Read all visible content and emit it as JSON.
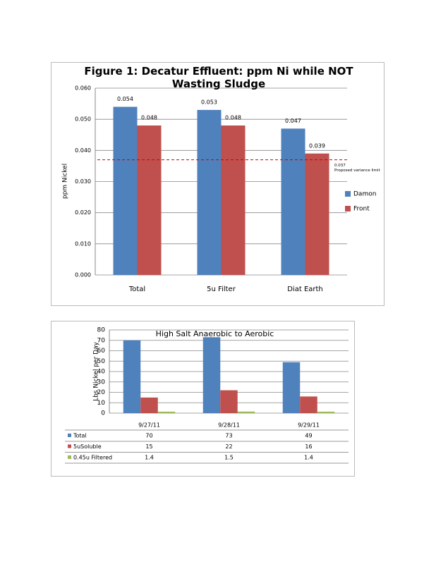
{
  "chart_data": [
    {
      "type": "bar",
      "title": "Figure 1: Decatur Effluent: ppm Ni while NOT Wasting Sludge",
      "y_label": "ppm Nickel",
      "categories": [
        "Total",
        "5u Filter",
        "Diat Earth"
      ],
      "series": [
        {
          "name": "Damon",
          "color": "#4f81bd",
          "values": [
            0.054,
            0.053,
            0.047
          ]
        },
        {
          "name": "Front",
          "color": "#c0504d",
          "values": [
            0.048,
            0.048,
            0.039
          ]
        }
      ],
      "ylim": [
        0,
        0.06
      ],
      "yticks": [
        {
          "value": 0,
          "label": "0.000"
        },
        {
          "value": 0.01,
          "label": "0.010"
        },
        {
          "value": 0.02,
          "label": "0.020"
        },
        {
          "value": 0.03,
          "label": "0.030"
        },
        {
          "value": 0.04,
          "label": "0.040"
        },
        {
          "value": 0.05,
          "label": "0.050"
        },
        {
          "value": 0.06,
          "label": "0.060"
        }
      ],
      "grid": true,
      "data_labels": true,
      "legend": "right",
      "reference_line": {
        "value": 0.037,
        "color": "#d00000",
        "label_lines": [
          "0.037",
          "Proposed variance limit"
        ]
      }
    },
    {
      "type": "bar",
      "title": "High Salt Anaerobic to Aerobic",
      "y_label": "Lbs Nickel per Day",
      "categories": [
        "9/27/11",
        "9/28/11",
        "9/29/11"
      ],
      "series": [
        {
          "name": "Total",
          "color": "#4f81bd",
          "values": [
            70,
            73,
            49
          ]
        },
        {
          "name": "5uSoluble",
          "color": "#c0504d",
          "values": [
            15,
            22,
            16
          ]
        },
        {
          "name": "0.45u Filtered",
          "color": "#9bbb59",
          "values": [
            1.4,
            1.5,
            1.4
          ]
        }
      ],
      "ylim": [
        0,
        80
      ],
      "yticks": [
        0,
        10,
        20,
        30,
        40,
        50,
        60,
        70,
        80
      ],
      "grid": true,
      "data_table": true
    }
  ]
}
